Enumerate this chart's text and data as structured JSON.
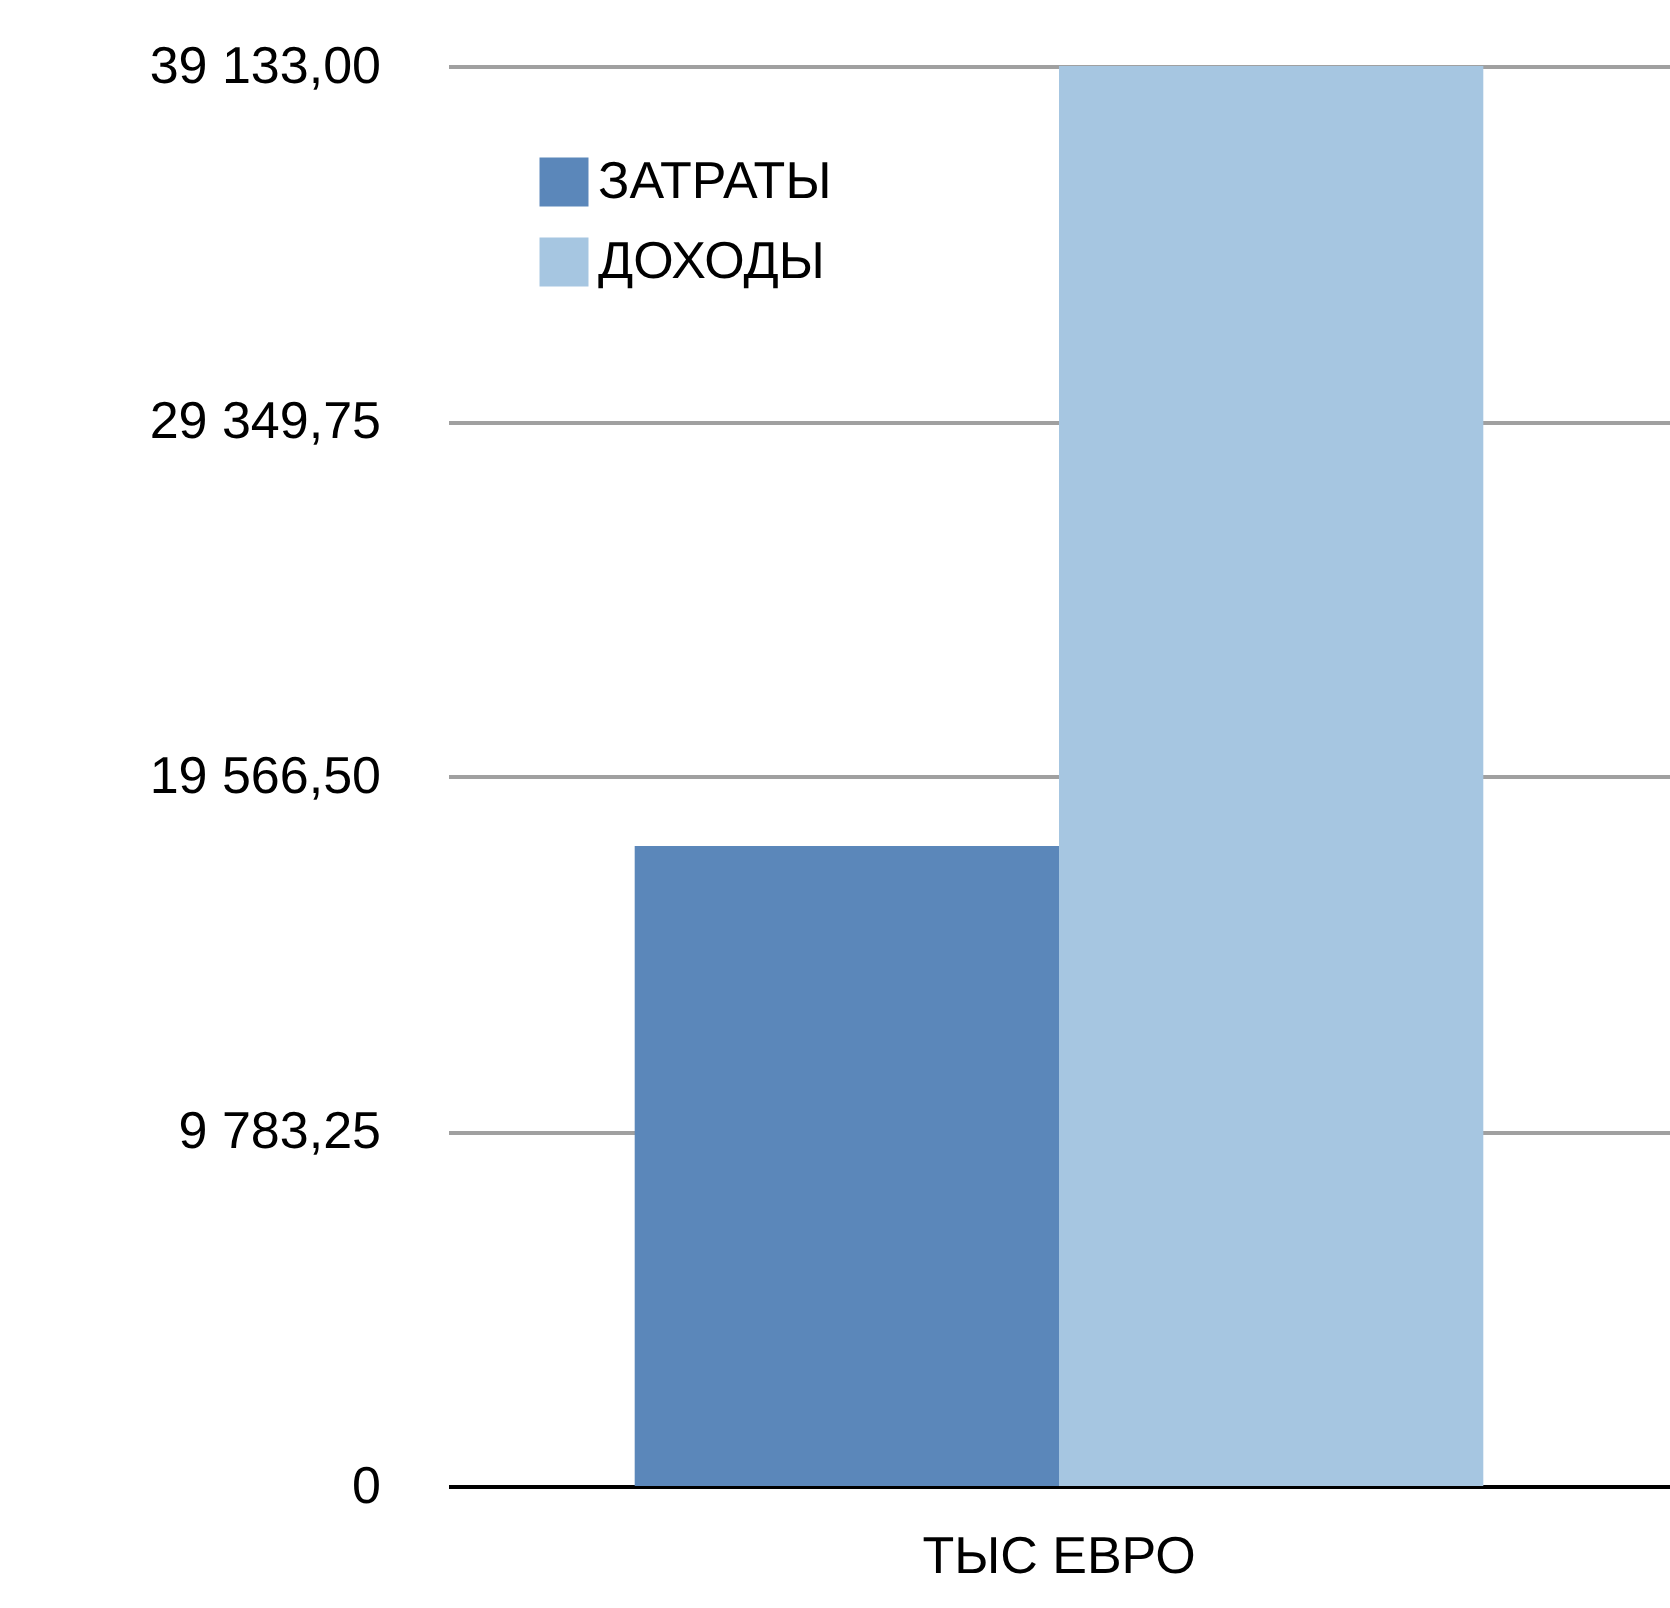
{
  "chart_data": {
    "type": "bar",
    "categories": [
      "ТЫС ЕВРО"
    ],
    "series": [
      {
        "name": "ЗАТРАТЫ",
        "color": "#5b87ba",
        "values": [
          17640
        ]
      },
      {
        "name": "ДОХОДЫ",
        "color": "#a6c6e1",
        "values": [
          39133
        ]
      }
    ],
    "ylim": [
      0,
      39133
    ],
    "yticks": [
      0,
      {
        "value": 9783.25,
        "label": "9 783,25"
      },
      {
        "value": 19566.5,
        "label": "19 566,50"
      },
      {
        "value": 29349.75,
        "label": "29 349,75"
      },
      {
        "value": 39133,
        "label": "39 133,00"
      }
    ],
    "grid": "y",
    "legend": "top left"
  }
}
